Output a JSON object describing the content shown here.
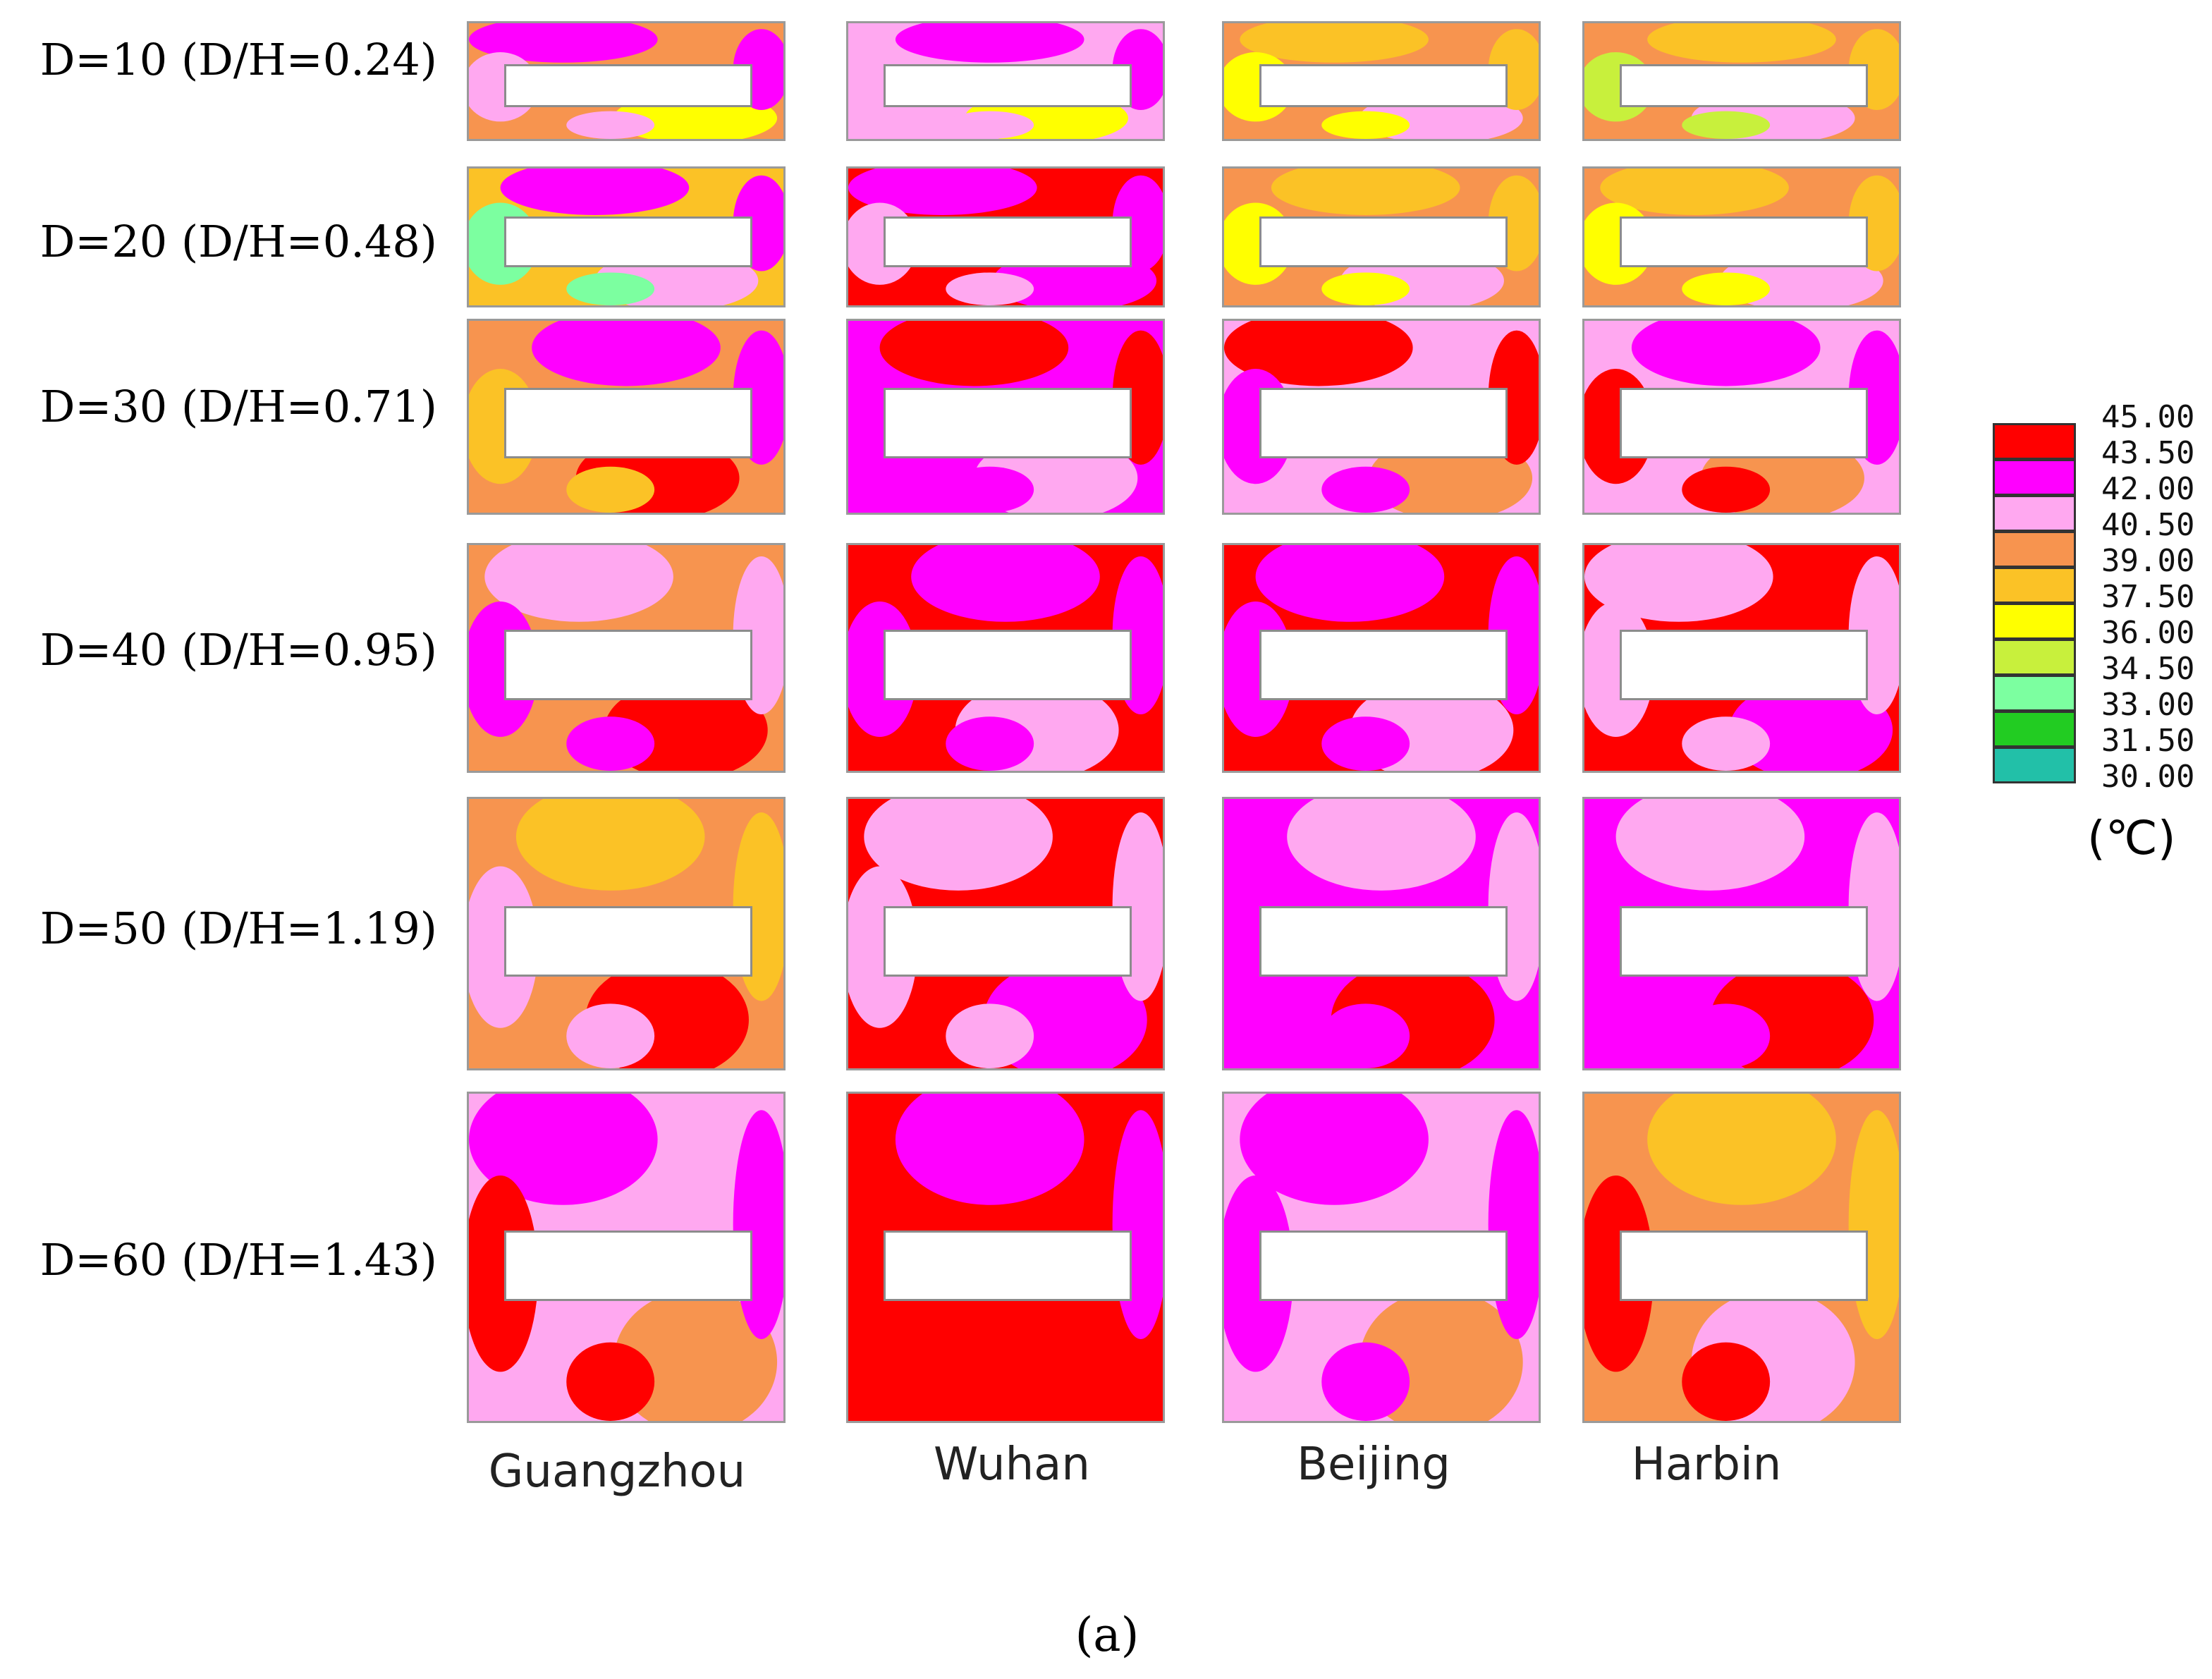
{
  "chart_data": {
    "type": "heatmap",
    "title": "",
    "subplot_caption": "(a)",
    "columns": [
      "Guangzhou",
      "Wuhan",
      "Beijing",
      "Harbin"
    ],
    "rows": [
      "D=10 (D/H=0.24)",
      "D=20 (D/H=0.48)",
      "D=30 (D/H=0.71)",
      "D=40 (D/H=0.95)",
      "D=50 (D/H=1.19)",
      "D=60  (D/H=1.43)"
    ],
    "colorbar": {
      "unit": "(℃)",
      "ticks": [
        "45.00",
        "43.50",
        "42.00",
        "40.50",
        "39.00",
        "37.50",
        "36.00",
        "34.50",
        "33.00",
        "31.50",
        "30.00"
      ],
      "range": [
        30.0,
        45.0
      ],
      "bands": [
        {
          "min": 43.5,
          "max": 45.0,
          "color": "#ff0000"
        },
        {
          "min": 42.0,
          "max": 43.5,
          "color": "#ff00ff"
        },
        {
          "min": 40.5,
          "max": 42.0,
          "color": "#ffa8f0"
        },
        {
          "min": 39.0,
          "max": 40.5,
          "color": "#f7944f"
        },
        {
          "min": 37.5,
          "max": 39.0,
          "color": "#fbc226"
        },
        {
          "min": 36.0,
          "max": 37.5,
          "color": "#ffff00"
        },
        {
          "min": 34.5,
          "max": 36.0,
          "color": "#c8f03c"
        },
        {
          "min": 33.0,
          "max": 34.5,
          "color": "#7cffa0"
        },
        {
          "min": 31.5,
          "max": 33.0,
          "color": "#22cc22"
        },
        {
          "min": 30.0,
          "max": 31.5,
          "color": "#22c0a8"
        }
      ]
    },
    "panel_dominant_band_C": [
      [
        [
          39.0,
          40.5
        ],
        [
          40.5,
          42.0
        ],
        [
          39.0,
          40.5
        ],
        [
          39.0,
          40.5
        ]
      ],
      [
        [
          37.5,
          39.0
        ],
        [
          43.5,
          45.0
        ],
        [
          39.0,
          40.5
        ],
        [
          39.0,
          40.5
        ]
      ],
      [
        [
          39.0,
          40.5
        ],
        [
          42.0,
          43.5
        ],
        [
          40.5,
          42.0
        ],
        [
          40.5,
          42.0
        ]
      ],
      [
        [
          39.0,
          40.5
        ],
        [
          43.5,
          45.0
        ],
        [
          43.5,
          45.0
        ],
        [
          43.5,
          45.0
        ]
      ],
      [
        [
          39.0,
          40.5
        ],
        [
          43.5,
          45.0
        ],
        [
          42.0,
          43.5
        ],
        [
          42.0,
          43.5
        ]
      ],
      [
        [
          40.5,
          42.0
        ],
        [
          43.5,
          45.0
        ],
        [
          40.5,
          42.0
        ],
        [
          39.0,
          40.5
        ]
      ]
    ]
  }
}
